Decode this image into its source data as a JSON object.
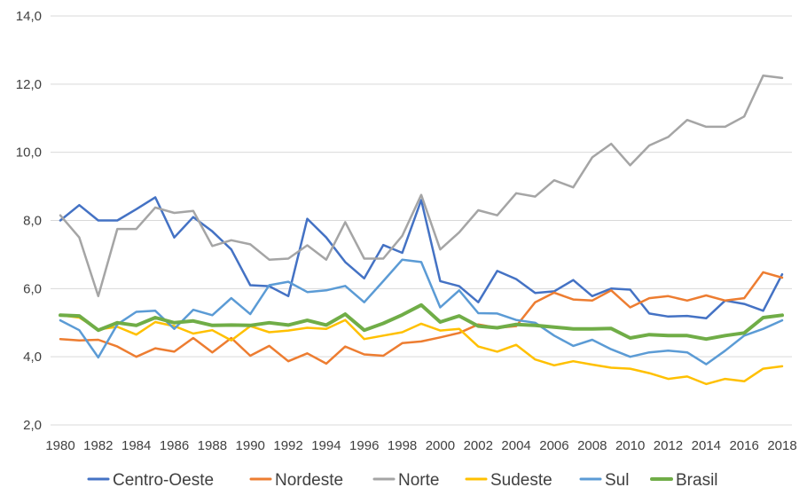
{
  "chart_data": {
    "type": "line",
    "title": "",
    "xlabel": "",
    "ylabel": "",
    "ylim": [
      2.0,
      14.0
    ],
    "y_ticks": [
      "2,0",
      "4,0",
      "6,0",
      "8,0",
      "10,0",
      "12,0",
      "14,0"
    ],
    "x_tick_labels": [
      "1980",
      "1982",
      "1984",
      "1986",
      "1988",
      "1990",
      "1992",
      "1994",
      "1996",
      "1998",
      "2000",
      "2002",
      "2004",
      "2006",
      "2008",
      "2010",
      "2012",
      "2014",
      "2016",
      "2018"
    ],
    "x": [
      1980,
      1981,
      1982,
      1983,
      1984,
      1985,
      1986,
      1987,
      1988,
      1989,
      1990,
      1991,
      1992,
      1993,
      1994,
      1995,
      1996,
      1997,
      1998,
      1999,
      2000,
      2001,
      2002,
      2003,
      2004,
      2005,
      2006,
      2007,
      2008,
      2009,
      2010,
      2011,
      2012,
      2013,
      2014,
      2015,
      2016,
      2017,
      2018
    ],
    "grid": "horizontal",
    "legend_position": "bottom",
    "series": [
      {
        "name": "Centro-Oeste",
        "color": "#4472C4",
        "values": [
          8.0,
          8.45,
          8.0,
          8.0,
          8.33,
          8.68,
          7.5,
          8.1,
          7.68,
          7.15,
          6.1,
          6.07,
          5.78,
          8.05,
          7.5,
          6.78,
          6.3,
          7.28,
          7.05,
          8.6,
          6.22,
          6.07,
          5.6,
          6.52,
          6.28,
          5.87,
          5.92,
          6.25,
          5.78,
          6.0,
          5.97,
          5.27,
          5.18,
          5.2,
          5.13,
          5.65,
          5.55,
          5.35,
          6.42
        ]
      },
      {
        "name": "Nordeste",
        "color": "#ED7D31",
        "values": [
          4.52,
          4.48,
          4.5,
          4.3,
          4.0,
          4.25,
          4.15,
          4.55,
          4.13,
          4.55,
          4.03,
          4.32,
          3.87,
          4.1,
          3.8,
          4.3,
          4.07,
          4.03,
          4.4,
          4.45,
          4.57,
          4.7,
          4.95,
          4.85,
          4.9,
          5.6,
          5.88,
          5.68,
          5.65,
          5.95,
          5.45,
          5.72,
          5.78,
          5.65,
          5.8,
          5.65,
          5.72,
          6.48,
          6.32
        ]
      },
      {
        "name": "Norte",
        "color": "#A5A5A5",
        "values": [
          8.15,
          7.5,
          5.78,
          7.75,
          7.75,
          8.38,
          8.22,
          8.28,
          7.25,
          7.42,
          7.3,
          6.85,
          6.88,
          7.27,
          6.85,
          7.95,
          6.88,
          6.88,
          7.55,
          8.75,
          7.15,
          7.65,
          8.3,
          8.15,
          8.8,
          8.7,
          9.18,
          8.97,
          9.85,
          10.25,
          9.62,
          10.2,
          10.45,
          10.95,
          10.75,
          10.75,
          11.05,
          12.25,
          12.18
        ]
      },
      {
        "name": "Sudeste",
        "color": "#FFC000",
        "values": [
          5.22,
          5.15,
          4.8,
          4.88,
          4.65,
          5.02,
          4.9,
          4.68,
          4.78,
          4.48,
          4.9,
          4.72,
          4.77,
          4.85,
          4.82,
          5.08,
          4.52,
          4.62,
          4.72,
          4.97,
          4.77,
          4.82,
          4.3,
          4.15,
          4.35,
          3.92,
          3.75,
          3.87,
          3.77,
          3.68,
          3.65,
          3.52,
          3.35,
          3.42,
          3.2,
          3.35,
          3.28,
          3.65,
          3.72
        ]
      },
      {
        "name": "Sul",
        "color": "#5B9BD5",
        "values": [
          5.07,
          4.78,
          3.98,
          4.95,
          5.32,
          5.35,
          4.82,
          5.38,
          5.22,
          5.72,
          5.25,
          6.1,
          6.2,
          5.9,
          5.95,
          6.08,
          5.6,
          6.22,
          6.85,
          6.78,
          5.45,
          5.95,
          5.28,
          5.27,
          5.08,
          5.0,
          4.62,
          4.32,
          4.5,
          4.22,
          4.0,
          4.13,
          4.18,
          4.13,
          3.78,
          4.18,
          4.62,
          4.82,
          5.07
        ]
      },
      {
        "name": "Brasil",
        "color": "#70AD47",
        "values": [
          5.22,
          5.2,
          4.78,
          5.0,
          4.92,
          5.15,
          5.0,
          5.05,
          4.92,
          4.93,
          4.92,
          5.0,
          4.93,
          5.07,
          4.93,
          5.25,
          4.78,
          4.98,
          5.23,
          5.52,
          5.02,
          5.2,
          4.9,
          4.85,
          4.95,
          4.92,
          4.87,
          4.82,
          4.82,
          4.83,
          4.55,
          4.65,
          4.62,
          4.62,
          4.52,
          4.62,
          4.7,
          5.15,
          5.22
        ]
      }
    ]
  }
}
